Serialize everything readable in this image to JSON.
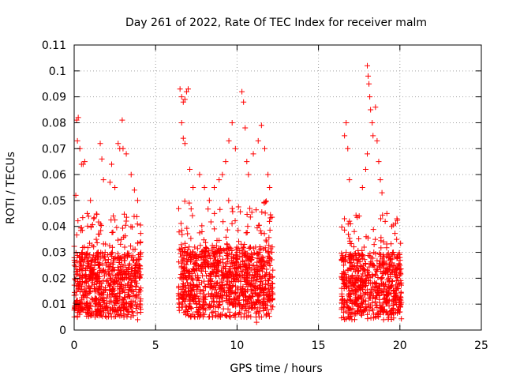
{
  "chart_data": {
    "type": "scatter",
    "title": "Day 261 of 2022, Rate Of TEC Index for receiver malm",
    "xlabel": "GPS time / hours",
    "ylabel": "ROTI / TECUs",
    "xlim": [
      0,
      25
    ],
    "ylim": [
      0,
      0.11
    ],
    "x_ticks": [
      "0",
      "5",
      "10",
      "15",
      "20",
      "25"
    ],
    "y_ticks": [
      "0",
      "0.01",
      "0.02",
      "0.03",
      "0.04",
      "0.05",
      "0.06",
      "0.07",
      "0.08",
      "0.09",
      "0.1",
      "0.11"
    ],
    "grid": true,
    "marker": "+",
    "marker_color": "#ff0000",
    "series": [
      {
        "values": [
          [
            0.1,
            0.052
          ],
          [
            0.15,
            0.081
          ],
          [
            0.2,
            0.073
          ],
          [
            0.25,
            0.082
          ],
          [
            0.35,
            0.07
          ],
          [
            0.45,
            0.064
          ],
          [
            0.55,
            0.064
          ],
          [
            0.65,
            0.065
          ],
          [
            0.8,
            0.045
          ],
          [
            1.0,
            0.05
          ],
          [
            1.2,
            0.043
          ],
          [
            1.5,
            0.037
          ],
          [
            1.7,
            0.066
          ],
          [
            1.8,
            0.058
          ],
          [
            2.2,
            0.057
          ],
          [
            2.5,
            0.055
          ],
          [
            2.7,
            0.072
          ],
          [
            2.8,
            0.07
          ],
          [
            2.95,
            0.081
          ],
          [
            3.0,
            0.07
          ],
          [
            3.2,
            0.068
          ],
          [
            3.5,
            0.06
          ],
          [
            3.7,
            0.054
          ],
          [
            3.9,
            0.05
          ],
          [
            1.6,
            0.072
          ],
          [
            2.3,
            0.064
          ],
          [
            0.3,
            0.01
          ],
          [
            0.6,
            0.008
          ],
          [
            1.1,
            0.007
          ],
          [
            1.4,
            0.006
          ],
          [
            2.0,
            0.005
          ],
          [
            2.6,
            0.007
          ],
          [
            3.3,
            0.006
          ],
          [
            3.9,
            0.004
          ],
          [
            0.5,
            0.03
          ],
          [
            0.9,
            0.025
          ],
          [
            1.3,
            0.028
          ],
          [
            1.9,
            0.03
          ],
          [
            2.4,
            0.027
          ],
          [
            3.1,
            0.032
          ],
          [
            3.6,
            0.028
          ],
          [
            4.0,
            0.025
          ],
          [
            0.2,
            0.018
          ],
          [
            0.7,
            0.02
          ],
          [
            1.0,
            0.015
          ],
          [
            1.5,
            0.02
          ],
          [
            2.1,
            0.018
          ],
          [
            2.8,
            0.016
          ],
          [
            3.4,
            0.02
          ],
          [
            3.8,
            0.017
          ],
          [
            6.5,
            0.093
          ],
          [
            6.6,
            0.09
          ],
          [
            6.7,
            0.088
          ],
          [
            6.8,
            0.089
          ],
          [
            6.9,
            0.092
          ],
          [
            7.0,
            0.093
          ],
          [
            6.6,
            0.08
          ],
          [
            6.7,
            0.074
          ],
          [
            6.8,
            0.072
          ],
          [
            7.1,
            0.062
          ],
          [
            7.3,
            0.055
          ],
          [
            7.7,
            0.06
          ],
          [
            8.0,
            0.055
          ],
          [
            8.3,
            0.05
          ],
          [
            8.6,
            0.055
          ],
          [
            8.9,
            0.058
          ],
          [
            9.3,
            0.065
          ],
          [
            9.5,
            0.073
          ],
          [
            9.7,
            0.08
          ],
          [
            9.9,
            0.07
          ],
          [
            10.3,
            0.092
          ],
          [
            10.4,
            0.088
          ],
          [
            10.5,
            0.078
          ],
          [
            10.6,
            0.065
          ],
          [
            11.0,
            0.068
          ],
          [
            11.3,
            0.073
          ],
          [
            11.5,
            0.079
          ],
          [
            11.7,
            0.07
          ],
          [
            11.9,
            0.06
          ],
          [
            12.0,
            0.055
          ],
          [
            10.7,
            0.06
          ],
          [
            9.1,
            0.06
          ],
          [
            6.6,
            0.01
          ],
          [
            7.0,
            0.008
          ],
          [
            7.5,
            0.007
          ],
          [
            8.0,
            0.006
          ],
          [
            8.5,
            0.005
          ],
          [
            9.0,
            0.006
          ],
          [
            9.6,
            0.005
          ],
          [
            10.1,
            0.006
          ],
          [
            10.6,
            0.005
          ],
          [
            11.2,
            0.003
          ],
          [
            11.8,
            0.006
          ],
          [
            12.1,
            0.008
          ],
          [
            6.8,
            0.03
          ],
          [
            7.4,
            0.032
          ],
          [
            8.1,
            0.028
          ],
          [
            8.7,
            0.03
          ],
          [
            9.4,
            0.033
          ],
          [
            10.0,
            0.03
          ],
          [
            10.8,
            0.032
          ],
          [
            11.4,
            0.03
          ],
          [
            12.0,
            0.028
          ],
          [
            7.2,
            0.02
          ],
          [
            8.4,
            0.018
          ],
          [
            9.8,
            0.02
          ],
          [
            11.0,
            0.019
          ],
          [
            16.6,
            0.075
          ],
          [
            16.7,
            0.08
          ],
          [
            16.8,
            0.07
          ],
          [
            16.9,
            0.058
          ],
          [
            16.9,
            0.042
          ],
          [
            17.2,
            0.038
          ],
          [
            17.5,
            0.044
          ],
          [
            17.7,
            0.055
          ],
          [
            17.9,
            0.062
          ],
          [
            18.0,
            0.102
          ],
          [
            18.05,
            0.098
          ],
          [
            18.1,
            0.095
          ],
          [
            18.15,
            0.09
          ],
          [
            18.2,
            0.085
          ],
          [
            18.3,
            0.08
          ],
          [
            18.35,
            0.075
          ],
          [
            18.5,
            0.086
          ],
          [
            18.6,
            0.073
          ],
          [
            18.7,
            0.065
          ],
          [
            18.8,
            0.058
          ],
          [
            18.9,
            0.053
          ],
          [
            19.2,
            0.045
          ],
          [
            19.5,
            0.04
          ],
          [
            19.8,
            0.035
          ],
          [
            20.0,
            0.025
          ],
          [
            18.0,
            0.068
          ],
          [
            16.6,
            0.01
          ],
          [
            17.0,
            0.008
          ],
          [
            17.5,
            0.007
          ],
          [
            18.0,
            0.006
          ],
          [
            18.5,
            0.005
          ],
          [
            19.0,
            0.004
          ],
          [
            19.5,
            0.006
          ],
          [
            20.0,
            0.007
          ],
          [
            16.7,
            0.03
          ],
          [
            17.3,
            0.028
          ],
          [
            17.8,
            0.032
          ],
          [
            18.4,
            0.03
          ],
          [
            19.0,
            0.034
          ],
          [
            19.6,
            0.03
          ],
          [
            20.0,
            0.028
          ],
          [
            17.0,
            0.02
          ],
          [
            18.2,
            0.018
          ],
          [
            19.3,
            0.02
          ],
          [
            19.9,
            0.016
          ]
        ]
      }
    ],
    "dense_bands": [
      {
        "x_start": 0,
        "x_end": 4.1,
        "y_low": 0.005,
        "y_high": 0.045,
        "y_core": 0.018
      },
      {
        "x_start": 6.4,
        "x_end": 12.2,
        "y_low": 0.005,
        "y_high": 0.05,
        "y_core": 0.02
      },
      {
        "x_start": 16.4,
        "x_end": 20.1,
        "y_low": 0.004,
        "y_high": 0.045,
        "y_core": 0.018
      }
    ]
  }
}
